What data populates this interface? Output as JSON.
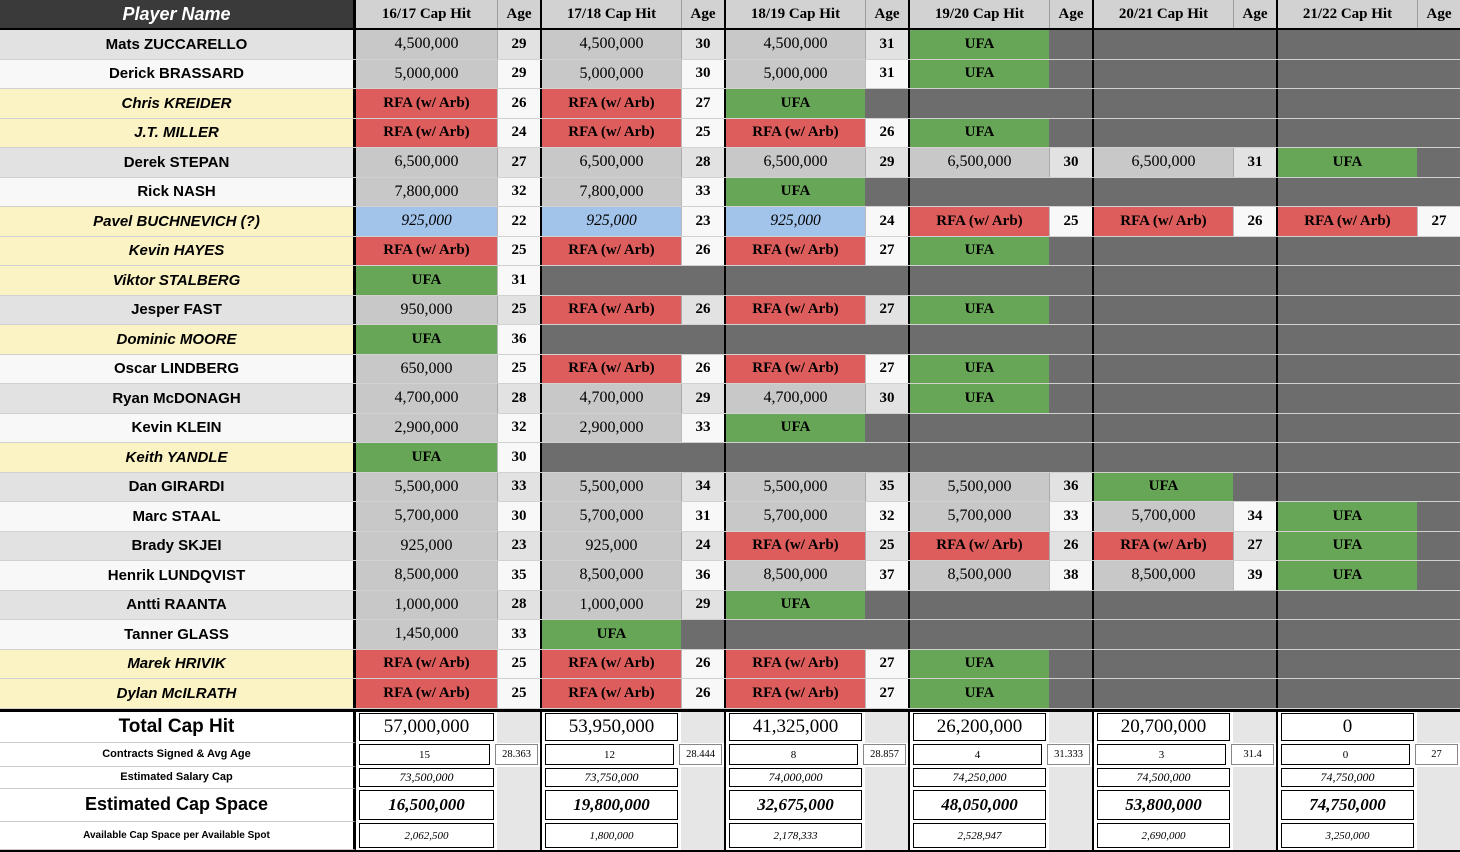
{
  "colors": {
    "header_dark_bg": "#3a3a3a",
    "header_light_bg": "#d2d2d2",
    "stripe_gray": "#e2e2e2",
    "stripe_white": "#f8f8f8",
    "pending_yellow": "#fbf3c4",
    "cap_number_bg": "#c8c8c8",
    "ufa_green": "#67a557",
    "rfa_red": "#dd5c5c",
    "elc_blue": "#a2c3ea",
    "no_contract_gray": "#6d6d6d"
  },
  "header": {
    "player_col": "Player Name",
    "age_label": "Age",
    "seasons": [
      "16/17 Cap Hit",
      "17/18 Cap Hit",
      "18/19 Cap Hit",
      "19/20 Cap Hit",
      "20/21 Cap Hit",
      "21/22 Cap Hit"
    ]
  },
  "cell_labels": {
    "ufa": "UFA",
    "rfa": "RFA  (w/ Arb)"
  },
  "players": [
    {
      "name": "Mats ZUCCARELLO",
      "pending": false,
      "cells": [
        [
          "num",
          "4,500,000",
          "29"
        ],
        [
          "num",
          "4,500,000",
          "30"
        ],
        [
          "num",
          "4,500,000",
          "31"
        ],
        [
          "ufa",
          "",
          ""
        ],
        [
          "empty",
          "",
          ""
        ],
        [
          "empty",
          "",
          ""
        ]
      ]
    },
    {
      "name": "Derick BRASSARD",
      "pending": false,
      "cells": [
        [
          "num",
          "5,000,000",
          "29"
        ],
        [
          "num",
          "5,000,000",
          "30"
        ],
        [
          "num",
          "5,000,000",
          "31"
        ],
        [
          "ufa",
          "",
          ""
        ],
        [
          "empty",
          "",
          ""
        ],
        [
          "empty",
          "",
          ""
        ]
      ]
    },
    {
      "name": "Chris KREIDER",
      "pending": true,
      "cells": [
        [
          "rfa",
          "",
          "26"
        ],
        [
          "rfa",
          "",
          "27"
        ],
        [
          "ufa",
          "",
          ""
        ],
        [
          "empty",
          "",
          ""
        ],
        [
          "empty",
          "",
          ""
        ],
        [
          "empty",
          "",
          ""
        ]
      ]
    },
    {
      "name": "J.T. MILLER",
      "pending": true,
      "cells": [
        [
          "rfa",
          "",
          "24"
        ],
        [
          "rfa",
          "",
          "25"
        ],
        [
          "rfa",
          "",
          "26"
        ],
        [
          "ufa",
          "",
          ""
        ],
        [
          "empty",
          "",
          ""
        ],
        [
          "empty",
          "",
          ""
        ]
      ]
    },
    {
      "name": "Derek STEPAN",
      "pending": false,
      "cells": [
        [
          "num",
          "6,500,000",
          "27"
        ],
        [
          "num",
          "6,500,000",
          "28"
        ],
        [
          "num",
          "6,500,000",
          "29"
        ],
        [
          "num",
          "6,500,000",
          "30"
        ],
        [
          "num",
          "6,500,000",
          "31"
        ],
        [
          "ufa",
          "",
          ""
        ]
      ]
    },
    {
      "name": "Rick NASH",
      "pending": false,
      "cells": [
        [
          "num",
          "7,800,000",
          "32"
        ],
        [
          "num",
          "7,800,000",
          "33"
        ],
        [
          "ufa",
          "",
          ""
        ],
        [
          "empty",
          "",
          ""
        ],
        [
          "empty",
          "",
          ""
        ],
        [
          "empty",
          "",
          ""
        ]
      ]
    },
    {
      "name": "Pavel BUCHNEVICH (?)",
      "pending": true,
      "cells": [
        [
          "elc",
          "925,000",
          "22"
        ],
        [
          "elc",
          "925,000",
          "23"
        ],
        [
          "elc",
          "925,000",
          "24"
        ],
        [
          "rfa",
          "",
          "25"
        ],
        [
          "rfa",
          "",
          "26"
        ],
        [
          "rfa",
          "",
          "27"
        ]
      ]
    },
    {
      "name": "Kevin HAYES",
      "pending": true,
      "cells": [
        [
          "rfa",
          "",
          "25"
        ],
        [
          "rfa",
          "",
          "26"
        ],
        [
          "rfa",
          "",
          "27"
        ],
        [
          "ufa",
          "",
          ""
        ],
        [
          "empty",
          "",
          ""
        ],
        [
          "empty",
          "",
          ""
        ]
      ]
    },
    {
      "name": "Viktor STALBERG",
      "pending": true,
      "cells": [
        [
          "ufa",
          "",
          "31"
        ],
        [
          "empty",
          "",
          ""
        ],
        [
          "empty",
          "",
          ""
        ],
        [
          "empty",
          "",
          ""
        ],
        [
          "empty",
          "",
          ""
        ],
        [
          "empty",
          "",
          ""
        ]
      ]
    },
    {
      "name": "Jesper FAST",
      "pending": false,
      "cells": [
        [
          "num",
          "950,000",
          "25"
        ],
        [
          "rfa",
          "",
          "26"
        ],
        [
          "rfa",
          "",
          "27"
        ],
        [
          "ufa",
          "",
          ""
        ],
        [
          "empty",
          "",
          ""
        ],
        [
          "empty",
          "",
          ""
        ]
      ]
    },
    {
      "name": "Dominic MOORE",
      "pending": true,
      "cells": [
        [
          "ufa",
          "",
          "36"
        ],
        [
          "empty",
          "",
          ""
        ],
        [
          "empty",
          "",
          ""
        ],
        [
          "empty",
          "",
          ""
        ],
        [
          "empty",
          "",
          ""
        ],
        [
          "empty",
          "",
          ""
        ]
      ]
    },
    {
      "name": "Oscar LINDBERG",
      "pending": false,
      "cells": [
        [
          "num",
          "650,000",
          "25"
        ],
        [
          "rfa",
          "",
          "26"
        ],
        [
          "rfa",
          "",
          "27"
        ],
        [
          "ufa",
          "",
          ""
        ],
        [
          "empty",
          "",
          ""
        ],
        [
          "empty",
          "",
          ""
        ]
      ]
    },
    {
      "name": "Ryan McDONAGH",
      "pending": false,
      "cells": [
        [
          "num",
          "4,700,000",
          "28"
        ],
        [
          "num",
          "4,700,000",
          "29"
        ],
        [
          "num",
          "4,700,000",
          "30"
        ],
        [
          "ufa",
          "",
          ""
        ],
        [
          "empty",
          "",
          ""
        ],
        [
          "empty",
          "",
          ""
        ]
      ]
    },
    {
      "name": "Kevin KLEIN",
      "pending": false,
      "cells": [
        [
          "num",
          "2,900,000",
          "32"
        ],
        [
          "num",
          "2,900,000",
          "33"
        ],
        [
          "ufa",
          "",
          ""
        ],
        [
          "empty",
          "",
          ""
        ],
        [
          "empty",
          "",
          ""
        ],
        [
          "empty",
          "",
          ""
        ]
      ]
    },
    {
      "name": "Keith YANDLE",
      "pending": true,
      "cells": [
        [
          "ufa",
          "",
          "30"
        ],
        [
          "empty",
          "",
          ""
        ],
        [
          "empty",
          "",
          ""
        ],
        [
          "empty",
          "",
          ""
        ],
        [
          "empty",
          "",
          ""
        ],
        [
          "empty",
          "",
          ""
        ]
      ]
    },
    {
      "name": "Dan GIRARDI",
      "pending": false,
      "cells": [
        [
          "num",
          "5,500,000",
          "33"
        ],
        [
          "num",
          "5,500,000",
          "34"
        ],
        [
          "num",
          "5,500,000",
          "35"
        ],
        [
          "num",
          "5,500,000",
          "36"
        ],
        [
          "ufa",
          "",
          ""
        ],
        [
          "empty",
          "",
          ""
        ]
      ]
    },
    {
      "name": "Marc STAAL",
      "pending": false,
      "cells": [
        [
          "num",
          "5,700,000",
          "30"
        ],
        [
          "num",
          "5,700,000",
          "31"
        ],
        [
          "num",
          "5,700,000",
          "32"
        ],
        [
          "num",
          "5,700,000",
          "33"
        ],
        [
          "num",
          "5,700,000",
          "34"
        ],
        [
          "ufa",
          "",
          ""
        ]
      ]
    },
    {
      "name": "Brady SKJEI",
      "pending": false,
      "cells": [
        [
          "num",
          "925,000",
          "23"
        ],
        [
          "num",
          "925,000",
          "24"
        ],
        [
          "rfa",
          "",
          "25"
        ],
        [
          "rfa",
          "",
          "26"
        ],
        [
          "rfa",
          "",
          "27"
        ],
        [
          "ufa",
          "",
          ""
        ]
      ]
    },
    {
      "name": "Henrik LUNDQVIST",
      "pending": false,
      "cells": [
        [
          "num",
          "8,500,000",
          "35"
        ],
        [
          "num",
          "8,500,000",
          "36"
        ],
        [
          "num",
          "8,500,000",
          "37"
        ],
        [
          "num",
          "8,500,000",
          "38"
        ],
        [
          "num",
          "8,500,000",
          "39"
        ],
        [
          "ufa",
          "",
          ""
        ]
      ]
    },
    {
      "name": "Antti RAANTA",
      "pending": false,
      "cells": [
        [
          "num",
          "1,000,000",
          "28"
        ],
        [
          "num",
          "1,000,000",
          "29"
        ],
        [
          "ufa",
          "",
          ""
        ],
        [
          "empty",
          "",
          ""
        ],
        [
          "empty",
          "",
          ""
        ],
        [
          "empty",
          "",
          ""
        ]
      ]
    },
    {
      "name": "Tanner GLASS",
      "pending": false,
      "cells": [
        [
          "num",
          "1,450,000",
          "33"
        ],
        [
          "ufa",
          "",
          ""
        ],
        [
          "empty",
          "",
          ""
        ],
        [
          "empty",
          "",
          ""
        ],
        [
          "empty",
          "",
          ""
        ],
        [
          "empty",
          "",
          ""
        ]
      ]
    },
    {
      "name": "Marek HRIVIK",
      "pending": true,
      "cells": [
        [
          "rfa",
          "",
          "25"
        ],
        [
          "rfa",
          "",
          "26"
        ],
        [
          "rfa",
          "",
          "27"
        ],
        [
          "ufa",
          "",
          ""
        ],
        [
          "empty",
          "",
          ""
        ],
        [
          "empty",
          "",
          ""
        ]
      ]
    },
    {
      "name": "Dylan McILRATH",
      "pending": true,
      "cells": [
        [
          "rfa",
          "",
          "25"
        ],
        [
          "rfa",
          "",
          "26"
        ],
        [
          "rfa",
          "",
          "27"
        ],
        [
          "ufa",
          "",
          ""
        ],
        [
          "empty",
          "",
          ""
        ],
        [
          "empty",
          "",
          ""
        ]
      ]
    }
  ],
  "footer": {
    "rows": [
      {
        "key": "total",
        "label": "Total Cap Hit",
        "values": [
          "57,000,000",
          "53,950,000",
          "41,325,000",
          "26,200,000",
          "20,700,000",
          "0"
        ],
        "ages": [
          "",
          "",
          "",
          "",
          "",
          ""
        ]
      },
      {
        "key": "contracts",
        "label": "Contracts Signed & Avg Age",
        "values": [
          "15",
          "12",
          "8",
          "4",
          "3",
          "0"
        ],
        "ages": [
          "28.363",
          "28.444",
          "28.857",
          "31.333",
          "31.4",
          "27"
        ]
      },
      {
        "key": "salary",
        "label": "Estimated Salary Cap",
        "values": [
          "73,500,000",
          "73,750,000",
          "74,000,000",
          "74,250,000",
          "74,500,000",
          "74,750,000"
        ],
        "ages": [
          "",
          "",
          "",
          "",
          "",
          ""
        ]
      },
      {
        "key": "space",
        "label": "Estimated Cap Space",
        "values": [
          "16,500,000",
          "19,800,000",
          "32,675,000",
          "48,050,000",
          "53,800,000",
          "74,750,000"
        ],
        "ages": [
          "",
          "",
          "",
          "",
          "",
          ""
        ]
      },
      {
        "key": "available",
        "label": "Available Cap Space per Available Spot",
        "values": [
          "2,062,500",
          "1,800,000",
          "2,178,333",
          "2,528,947",
          "2,690,000",
          "3,250,000"
        ],
        "ages": [
          "",
          "",
          "",
          "",
          "",
          ""
        ]
      }
    ]
  }
}
